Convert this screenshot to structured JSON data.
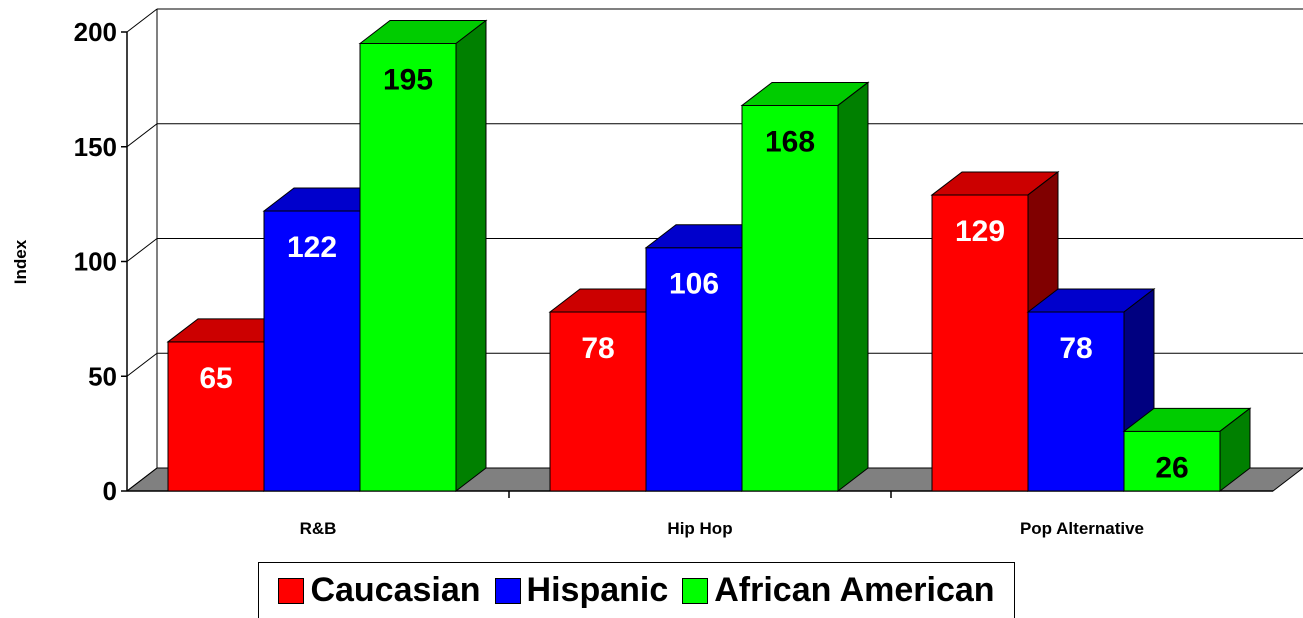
{
  "chart_data": {
    "type": "bar",
    "categories": [
      "R&B",
      "Hip Hop",
      "Pop Alternative"
    ],
    "series": [
      {
        "name": "Caucasian",
        "values": [
          65,
          78,
          129
        ],
        "color": "#ff0000",
        "top_color": "#cc0000",
        "side_color": "#800000",
        "label_color": "#ffffff"
      },
      {
        "name": "Hispanic",
        "values": [
          122,
          106,
          78
        ],
        "color": "#0000ff",
        "top_color": "#0000cc",
        "side_color": "#000080",
        "label_color": "#ffffff"
      },
      {
        "name": "African American",
        "values": [
          195,
          168,
          26
        ],
        "color": "#00ff00",
        "top_color": "#00cc00",
        "side_color": "#008000",
        "label_color": "#000000"
      }
    ],
    "ylabel": "Index",
    "ylim": [
      0,
      200
    ],
    "yticks": [
      "0",
      "50",
      "100",
      "150",
      "200"
    ],
    "grid": true,
    "three_d": true,
    "legend_position": "bottom"
  }
}
